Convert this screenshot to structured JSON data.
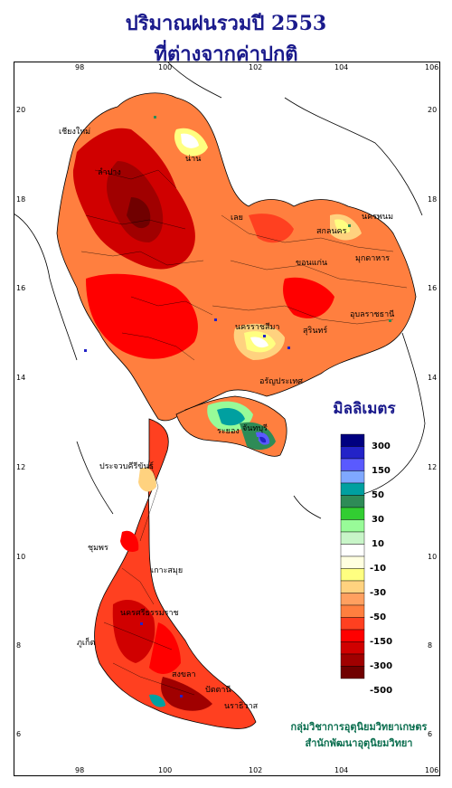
{
  "title": {
    "line1": "ปริมาณฝนรวมปี 2553",
    "line2": "ที่ต่างจากค่าปกติ"
  },
  "map": {
    "lon_ticks": [
      "98",
      "100",
      "102",
      "104",
      "106"
    ],
    "lat_ticks": [
      "20",
      "18",
      "16",
      "14",
      "12",
      "10",
      "8",
      "6"
    ],
    "place_labels": [
      "เชียงใหม่",
      "ลำปาง",
      "น่าน",
      "เลย",
      "นครพนม",
      "สกลนคร",
      "มุกดาหาร",
      "ขอนแก่น",
      "อุบลราชธานี",
      "นครราชสีมา",
      "สุรินทร์",
      "อรัญประเทศ",
      "ระยอง",
      "จันทบุรี",
      "ประจวบคีรีขันธ์",
      "ชุมพร",
      "เกาะสมุย",
      "นครศรีธรรมราช",
      "ภูเก็ต",
      "สงขลา",
      "ปัตตานี",
      "นราธิวาส"
    ]
  },
  "legend": {
    "title": "มิลลิเมตร",
    "ticks": [
      "300",
      "150",
      "50",
      "30",
      "10",
      "-10",
      "-30",
      "-50",
      "-150",
      "-300",
      "-500"
    ],
    "colors": [
      "#000080",
      "#2323c8",
      "#5a5aff",
      "#7fa8ff",
      "#00a0a0",
      "#2e8b57",
      "#32cd32",
      "#98fb98",
      "#c8f5c8",
      "#ffffff",
      "#ffffe0",
      "#ffff80",
      "#ffd27f",
      "#ffa060",
      "#ff7f3f",
      "#ff4020",
      "#ff0000",
      "#d00000",
      "#a00000",
      "#700000"
    ]
  },
  "credit": {
    "line1": "กลุ่มวิชาการอุตุนิยมวิทยาเกษตร",
    "line2": "สำนักพัฒนาอุตุนิยมวิทยา"
  }
}
